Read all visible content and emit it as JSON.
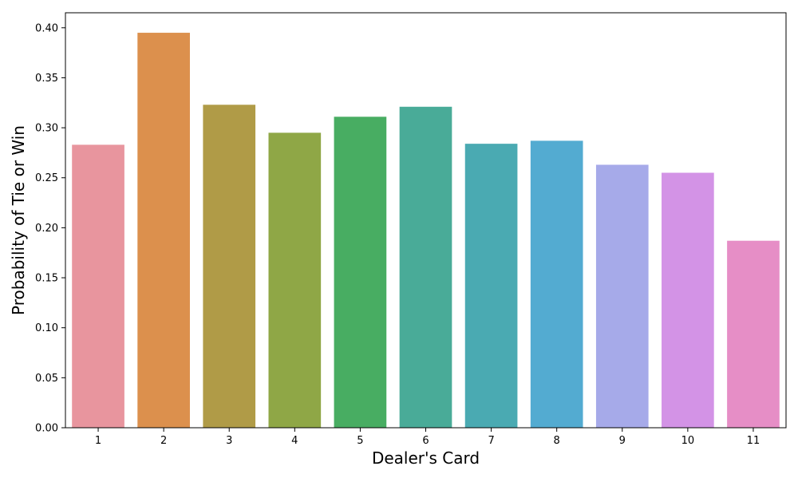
{
  "chart_data": {
    "type": "bar",
    "title": "",
    "xlabel": "Dealer's Card",
    "ylabel": "Probability of Tie or Win",
    "categories": [
      "1",
      "2",
      "3",
      "4",
      "5",
      "6",
      "7",
      "8",
      "9",
      "10",
      "11"
    ],
    "values": [
      0.283,
      0.395,
      0.323,
      0.295,
      0.311,
      0.321,
      0.284,
      0.287,
      0.263,
      0.255,
      0.187
    ],
    "colors": [
      "#e8959e",
      "#dc904d",
      "#b09b47",
      "#8fa746",
      "#48ad62",
      "#49ab98",
      "#4aaab2",
      "#53abd1",
      "#a6aae9",
      "#d393e6",
      "#e68ec6"
    ],
    "ylim": [
      0,
      0.415
    ],
    "yticks": [
      0.0,
      0.05,
      0.1,
      0.15,
      0.2,
      0.25,
      0.3,
      0.35,
      0.4
    ],
    "ytick_labels": [
      "0.00",
      "0.05",
      "0.10",
      "0.15",
      "0.20",
      "0.25",
      "0.30",
      "0.35",
      "0.40"
    ],
    "grid": false,
    "legend": "none"
  }
}
